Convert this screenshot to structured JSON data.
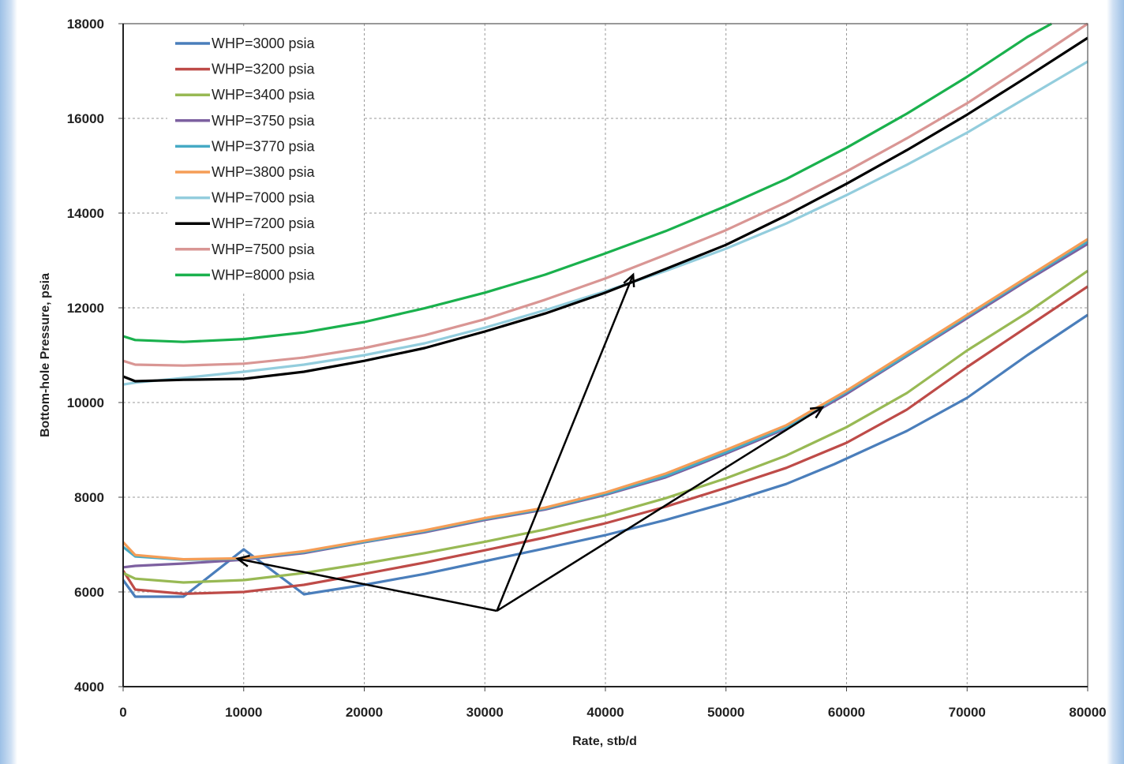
{
  "chart_data": {
    "type": "line",
    "title": "",
    "xlabel": "Rate, stb/d",
    "ylabel": "Bottom-hole Pressure, psia",
    "xlim": [
      0,
      80000
    ],
    "ylim": [
      4000,
      18000
    ],
    "x_ticks": [
      0,
      10000,
      20000,
      30000,
      40000,
      50000,
      60000,
      70000,
      80000
    ],
    "y_ticks": [
      4000,
      6000,
      8000,
      10000,
      12000,
      14000,
      16000,
      18000
    ],
    "grid": true,
    "legend_position": "top-left",
    "series": [
      {
        "name": "WHP=3000 psia",
        "color": "#4a7ebb",
        "points": [
          [
            0,
            6250
          ],
          [
            1000,
            5900
          ],
          [
            5000,
            5900
          ],
          [
            10000,
            6900
          ],
          [
            15000,
            5950
          ],
          [
            20000,
            6150
          ],
          [
            25000,
            6380
          ],
          [
            30000,
            6650
          ],
          [
            35000,
            6920
          ],
          [
            40000,
            7200
          ],
          [
            45000,
            7520
          ],
          [
            50000,
            7880
          ],
          [
            55000,
            8280
          ],
          [
            59000,
            8700
          ],
          [
            65000,
            9400
          ],
          [
            70000,
            10100
          ],
          [
            75000,
            11000
          ],
          [
            80000,
            11850
          ]
        ]
      },
      {
        "name": "WHP=3200 psia",
        "color": "#be4b48",
        "points": [
          [
            0,
            6450
          ],
          [
            1000,
            6050
          ],
          [
            5000,
            5960
          ],
          [
            10000,
            6000
          ],
          [
            15000,
            6150
          ],
          [
            20000,
            6380
          ],
          [
            25000,
            6620
          ],
          [
            30000,
            6880
          ],
          [
            35000,
            7150
          ],
          [
            40000,
            7450
          ],
          [
            45000,
            7800
          ],
          [
            50000,
            8200
          ],
          [
            55000,
            8620
          ],
          [
            60000,
            9150
          ],
          [
            65000,
            9850
          ],
          [
            70000,
            10750
          ],
          [
            75000,
            11600
          ],
          [
            80000,
            12450
          ]
        ]
      },
      {
        "name": "WHP=3400 psia",
        "color": "#98b954",
        "points": [
          [
            0,
            6400
          ],
          [
            1000,
            6280
          ],
          [
            5000,
            6200
          ],
          [
            10000,
            6250
          ],
          [
            15000,
            6400
          ],
          [
            20000,
            6600
          ],
          [
            25000,
            6820
          ],
          [
            30000,
            7060
          ],
          [
            35000,
            7320
          ],
          [
            40000,
            7620
          ],
          [
            45000,
            7980
          ],
          [
            50000,
            8400
          ],
          [
            55000,
            8880
          ],
          [
            60000,
            9480
          ],
          [
            65000,
            10200
          ],
          [
            70000,
            11100
          ],
          [
            75000,
            11900
          ],
          [
            80000,
            12780
          ]
        ]
      },
      {
        "name": "WHP=3750 psia",
        "color": "#7d60a0",
        "points": [
          [
            0,
            6520
          ],
          [
            1000,
            6550
          ],
          [
            5000,
            6600
          ],
          [
            10000,
            6680
          ],
          [
            15000,
            6820
          ],
          [
            20000,
            7050
          ],
          [
            25000,
            7260
          ],
          [
            30000,
            7520
          ],
          [
            35000,
            7740
          ],
          [
            40000,
            8050
          ],
          [
            45000,
            8420
          ],
          [
            50000,
            8920
          ],
          [
            55000,
            9450
          ],
          [
            60000,
            10180
          ],
          [
            65000,
            10980
          ],
          [
            70000,
            11780
          ],
          [
            75000,
            12580
          ],
          [
            80000,
            13350
          ]
        ]
      },
      {
        "name": "WHP=3770 psia",
        "color": "#46aac5",
        "points": [
          [
            0,
            6950
          ],
          [
            1000,
            6750
          ],
          [
            5000,
            6680
          ],
          [
            10000,
            6700
          ],
          [
            15000,
            6840
          ],
          [
            20000,
            7060
          ],
          [
            25000,
            7280
          ],
          [
            30000,
            7540
          ],
          [
            35000,
            7760
          ],
          [
            40000,
            8070
          ],
          [
            45000,
            8450
          ],
          [
            50000,
            8950
          ],
          [
            55000,
            9480
          ],
          [
            60000,
            10220
          ],
          [
            65000,
            11000
          ],
          [
            70000,
            11820
          ],
          [
            75000,
            12620
          ],
          [
            80000,
            13400
          ]
        ]
      },
      {
        "name": "WHP=3800 psia",
        "color": "#f59d56",
        "points": [
          [
            0,
            7050
          ],
          [
            1000,
            6780
          ],
          [
            5000,
            6690
          ],
          [
            10000,
            6710
          ],
          [
            15000,
            6860
          ],
          [
            20000,
            7080
          ],
          [
            25000,
            7300
          ],
          [
            30000,
            7560
          ],
          [
            35000,
            7780
          ],
          [
            40000,
            8100
          ],
          [
            45000,
            8500
          ],
          [
            50000,
            9000
          ],
          [
            55000,
            9520
          ],
          [
            60000,
            10250
          ],
          [
            65000,
            11050
          ],
          [
            70000,
            11850
          ],
          [
            75000,
            12650
          ],
          [
            80000,
            13450
          ]
        ]
      },
      {
        "name": "WHP=7000 psia",
        "color": "#93cddd",
        "points": [
          [
            0,
            10380
          ],
          [
            1000,
            10420
          ],
          [
            5000,
            10520
          ],
          [
            10000,
            10650
          ],
          [
            15000,
            10800
          ],
          [
            20000,
            11000
          ],
          [
            25000,
            11250
          ],
          [
            30000,
            11580
          ],
          [
            35000,
            11950
          ],
          [
            40000,
            12350
          ],
          [
            45000,
            12780
          ],
          [
            50000,
            13250
          ],
          [
            55000,
            13780
          ],
          [
            60000,
            14380
          ],
          [
            65000,
            15020
          ],
          [
            70000,
            15700
          ],
          [
            75000,
            16450
          ],
          [
            80000,
            17200
          ]
        ]
      },
      {
        "name": "WHP=7200 psia",
        "color": "#000000",
        "points": [
          [
            0,
            10550
          ],
          [
            1000,
            10450
          ],
          [
            5000,
            10480
          ],
          [
            10000,
            10500
          ],
          [
            15000,
            10650
          ],
          [
            20000,
            10880
          ],
          [
            25000,
            11150
          ],
          [
            30000,
            11500
          ],
          [
            35000,
            11880
          ],
          [
            40000,
            12320
          ],
          [
            45000,
            12820
          ],
          [
            50000,
            13330
          ],
          [
            55000,
            13950
          ],
          [
            60000,
            14620
          ],
          [
            65000,
            15330
          ],
          [
            70000,
            16080
          ],
          [
            75000,
            16880
          ],
          [
            80000,
            17700
          ]
        ]
      },
      {
        "name": "WHP=7500 psia",
        "color": "#d99694",
        "points": [
          [
            0,
            10880
          ],
          [
            1000,
            10800
          ],
          [
            5000,
            10780
          ],
          [
            10000,
            10820
          ],
          [
            15000,
            10950
          ],
          [
            20000,
            11150
          ],
          [
            25000,
            11420
          ],
          [
            30000,
            11760
          ],
          [
            35000,
            12170
          ],
          [
            40000,
            12620
          ],
          [
            45000,
            13120
          ],
          [
            50000,
            13640
          ],
          [
            55000,
            14230
          ],
          [
            60000,
            14880
          ],
          [
            65000,
            15580
          ],
          [
            70000,
            16320
          ],
          [
            75000,
            17150
          ],
          [
            80000,
            18000
          ]
        ]
      },
      {
        "name": "WHP=8000 psia",
        "color": "#1ab14d",
        "points": [
          [
            0,
            11400
          ],
          [
            1000,
            11320
          ],
          [
            5000,
            11280
          ],
          [
            10000,
            11340
          ],
          [
            15000,
            11480
          ],
          [
            20000,
            11700
          ],
          [
            25000,
            11990
          ],
          [
            30000,
            12320
          ],
          [
            35000,
            12700
          ],
          [
            40000,
            13150
          ],
          [
            45000,
            13620
          ],
          [
            50000,
            14150
          ],
          [
            55000,
            14720
          ],
          [
            60000,
            15380
          ],
          [
            65000,
            16100
          ],
          [
            70000,
            16880
          ],
          [
            75000,
            17720
          ],
          [
            77000,
            18050
          ]
        ]
      }
    ],
    "annotations": [
      {
        "type": "arrow",
        "from": [
          31000,
          5600
        ],
        "to": [
          9500,
          6700
        ]
      },
      {
        "type": "arrow",
        "from": [
          31000,
          5600
        ],
        "to": [
          42300,
          12700
        ]
      },
      {
        "type": "arrow",
        "from": [
          31000,
          5600
        ],
        "to": [
          58000,
          9900
        ]
      }
    ]
  }
}
